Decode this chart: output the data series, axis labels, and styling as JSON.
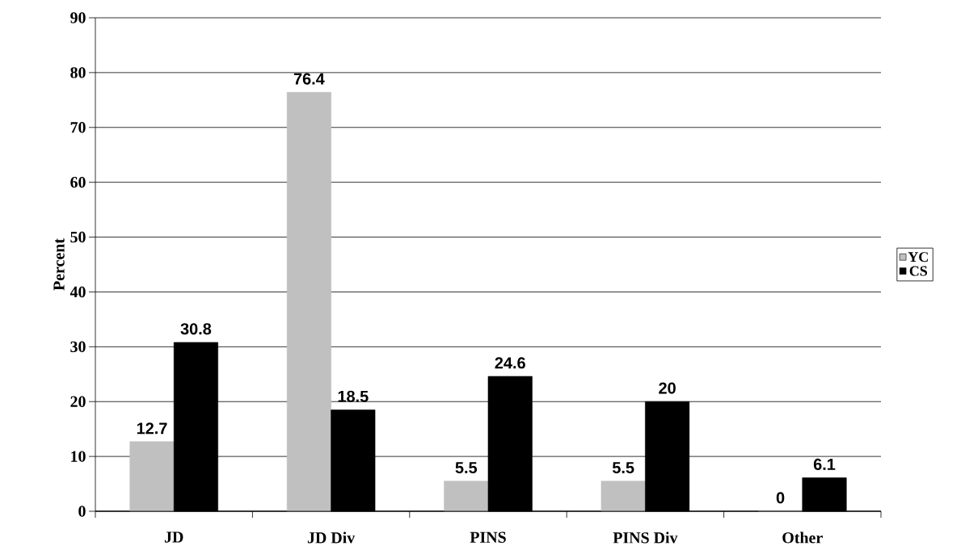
{
  "chart_data": {
    "type": "bar",
    "ylabel": "Percent",
    "categories": [
      "JD",
      "JD Div",
      "PINS",
      "PINS Div",
      "Other"
    ],
    "series": [
      {
        "name": "YC",
        "color": "#c0c0c0",
        "values": [
          12.7,
          76.4,
          5.5,
          5.5,
          0
        ]
      },
      {
        "name": "CS",
        "color": "#000000",
        "values": [
          30.8,
          18.5,
          24.6,
          20,
          6.1
        ]
      }
    ],
    "ylim": [
      0,
      90
    ],
    "yticks": [
      0,
      10,
      20,
      30,
      40,
      50,
      60,
      70,
      80,
      90
    ],
    "grid": "y",
    "legend": "right",
    "data_labels": true
  }
}
